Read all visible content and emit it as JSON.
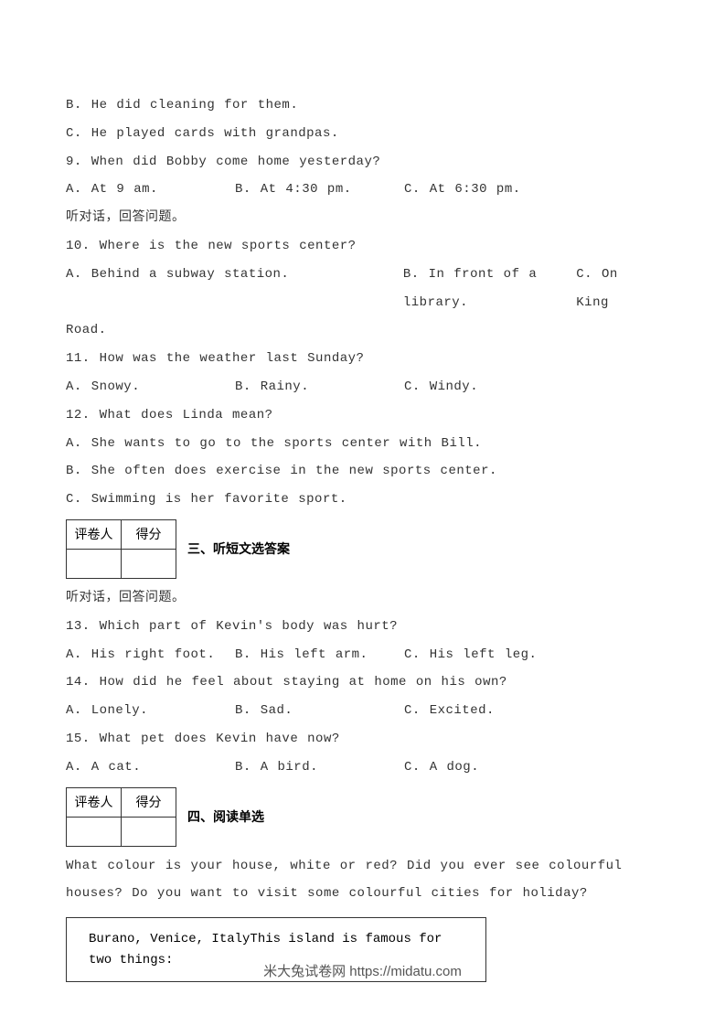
{
  "q8": {
    "opt_b": "B. He did cleaning for them.",
    "opt_c": "C. He played cards with grandpas."
  },
  "q9": {
    "stem": "9. When did Bobby come home yesterday?",
    "opt_a": "A. At 9 am.",
    "opt_b": "B. At 4:30 pm.",
    "opt_c": "C. At 6:30 pm."
  },
  "instr1": "听对话，回答问题。",
  "q10": {
    "stem": "10. Where is the new sports center?",
    "opt_a": "A. Behind a subway station.",
    "opt_b": "B. In front of a library.",
    "opt_c": "C. On King",
    "opt_c_cont": "Road."
  },
  "q11": {
    "stem": "11. How was the weather last Sunday?",
    "opt_a": "A. Snowy.",
    "opt_b": "B. Rainy.",
    "opt_c": "C. Windy."
  },
  "q12": {
    "stem": "12. What does Linda mean?",
    "opt_a": "A. She wants to go to the sports center with Bill.",
    "opt_b": "B. She often does exercise in the new sports center.",
    "opt_c": "C. Swimming is her favorite sport."
  },
  "scorebox": {
    "col1": "评卷人",
    "col2": "得分"
  },
  "section3_title": "三、听短文选答案",
  "instr2": "听对话，回答问题。",
  "q13": {
    "stem": "13. Which part of Kevin's body was hurt?",
    "opt_a": "A. His right foot.",
    "opt_b": "B. His left arm.",
    "opt_c": "C. His left leg."
  },
  "q14": {
    "stem": "14. How did he feel about staying at home on his own?",
    "opt_a": "A. Lonely.",
    "opt_b": "B. Sad.",
    "opt_c": "C. Excited."
  },
  "q15": {
    "stem": "15. What pet does Kevin have now?",
    "opt_a": "A. A cat.",
    "opt_b": "B. A bird.",
    "opt_c": "C. A dog."
  },
  "section4_title": "四、阅读单选",
  "passage_intro": "What colour is your house, white or red? Did you ever see colourful houses? Do you want to visit some colourful cities for holiday?",
  "passage_box": "Burano, Venice, ItalyThis island is famous for two things:",
  "footer": "米大兔试卷网 https://midatu.com"
}
